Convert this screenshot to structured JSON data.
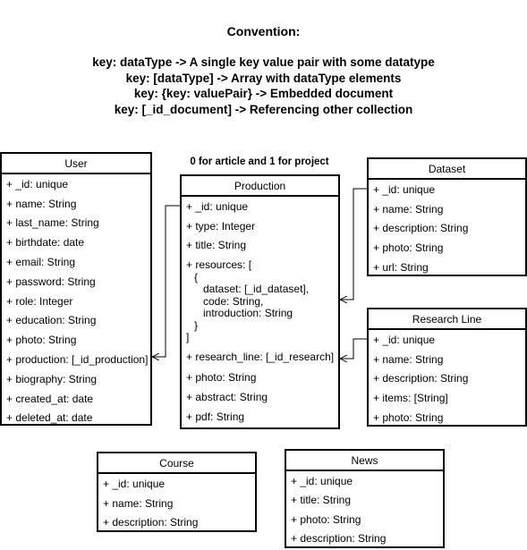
{
  "convention": {
    "title": "Convention:",
    "lines": [
      "key: dataType -> A single key value pair with some datatype",
      "key: [dataType] -> Array with dataType elements",
      "key: {key: valuePair} -> Embedded document",
      "key: [_id_document] -> Referencing other collection"
    ]
  },
  "note": "0 for article and 1 for project",
  "entities": {
    "user": {
      "name": "User",
      "fields": [
        "+ _id: unique",
        "+ name: String",
        "+ last_name: String",
        "+ birthdate: date",
        "+ email: String",
        "+ password: String",
        "+ role: Integer",
        "+ education: String",
        "+ photo: String",
        "+ production: [_id_production]",
        "+ biography: String",
        "+ created_at: date",
        "+ deleted_at: date"
      ]
    },
    "production": {
      "name": "Production",
      "fields_top": [
        "+ _id: unique",
        "+ type: Integer",
        "+ title: String"
      ],
      "resources": {
        "open": "+ resources: [",
        "brace_open": "{",
        "items": [
          "dataset: [_id_dataset],",
          "code: String,",
          "introduction: String"
        ],
        "brace_close": "}",
        "close": "]"
      },
      "fields_bottom": [
        "+ research_line: [_id_research]",
        "+ photo: String",
        "+ abstract: String",
        "+ pdf: String"
      ]
    },
    "dataset": {
      "name": "Dataset",
      "fields": [
        "+ _id: unique",
        "+ name: String",
        "+ description: String",
        "+ photo: String",
        "+ url: String"
      ]
    },
    "research_line": {
      "name": "Research Line",
      "fields": [
        "+ _id: unique",
        "+ name: String",
        "+ description: String",
        "+ items: [String]",
        "+ photo: String"
      ]
    },
    "course": {
      "name": "Course",
      "fields": [
        "+ _id: unique",
        "+ name: String",
        "+ description: String"
      ]
    },
    "news": {
      "name": "News",
      "fields": [
        "+ _id: unique",
        "+ title: String",
        "+ photo: String",
        "+ description: String"
      ]
    }
  }
}
